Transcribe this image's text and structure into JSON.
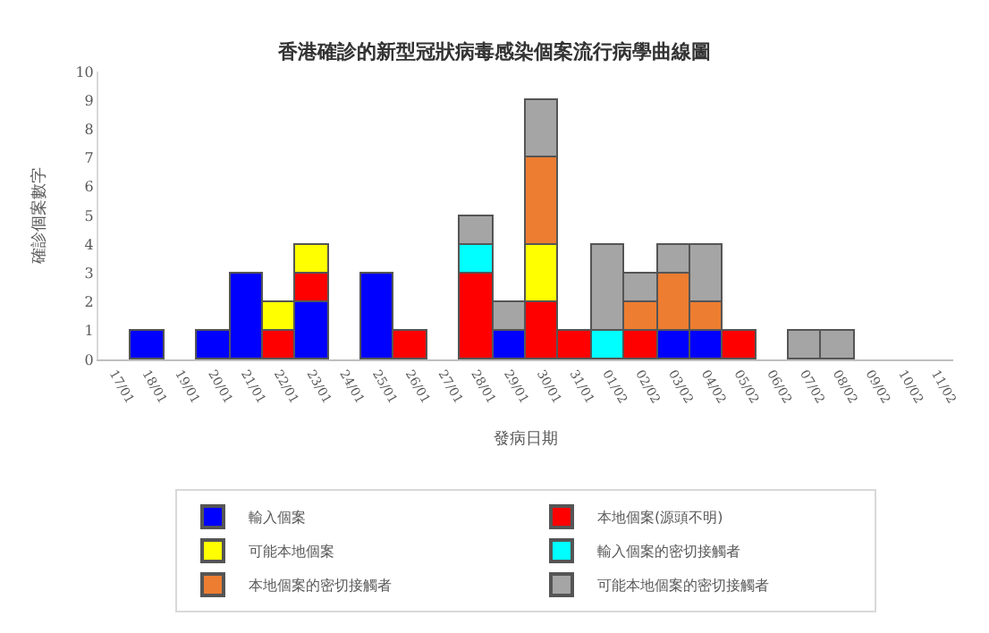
{
  "chart_data": {
    "type": "bar",
    "title": "香港確診的新型冠狀病毒感染個案流行病學曲線圖",
    "xlabel": "發病日期",
    "ylabel": "確診個案數字",
    "categories": [
      "17/01",
      "18/01",
      "19/01",
      "20/01",
      "21/01",
      "22/01",
      "23/01",
      "24/01",
      "25/01",
      "26/01",
      "27/01",
      "28/01",
      "29/01",
      "30/01",
      "31/01",
      "01/02",
      "02/02",
      "03/02",
      "04/02",
      "05/02",
      "06/02",
      "07/02",
      "08/02",
      "09/02",
      "10/02",
      "11/02"
    ],
    "stacked": true,
    "ylim": [
      0,
      10
    ],
    "yticks": [
      0,
      1,
      2,
      3,
      4,
      5,
      6,
      7,
      8,
      9,
      10
    ],
    "legend": "bottom",
    "series": [
      {
        "name": "輸入個案",
        "color": "#0000ff",
        "values": [
          null,
          1,
          null,
          1,
          3,
          null,
          2,
          null,
          3,
          null,
          null,
          null,
          1,
          null,
          null,
          null,
          null,
          1,
          1,
          null,
          null,
          null,
          null,
          null,
          null,
          null
        ]
      },
      {
        "name": "本地個案(源頭不明)",
        "color": "#ff0000",
        "values": [
          null,
          null,
          null,
          null,
          null,
          1,
          1,
          null,
          null,
          1,
          null,
          3,
          null,
          2,
          1,
          null,
          1,
          null,
          null,
          1,
          null,
          null,
          null,
          null,
          null,
          null
        ]
      },
      {
        "name": "可能本地個案",
        "color": "#ffff00",
        "values": [
          null,
          null,
          null,
          null,
          null,
          1,
          1,
          null,
          null,
          null,
          null,
          null,
          null,
          2,
          null,
          null,
          null,
          null,
          null,
          null,
          null,
          null,
          null,
          null,
          null,
          null
        ]
      },
      {
        "name": "輸入個案的密切接觸者",
        "color": "#00ffff",
        "values": [
          null,
          null,
          null,
          null,
          null,
          null,
          null,
          null,
          null,
          null,
          null,
          1,
          null,
          null,
          null,
          1,
          null,
          null,
          null,
          null,
          null,
          null,
          null,
          null,
          null,
          null
        ]
      },
      {
        "name": "本地個案的密切接觸者",
        "color": "#ed7d31",
        "values": [
          null,
          null,
          null,
          null,
          null,
          null,
          null,
          null,
          null,
          null,
          null,
          null,
          null,
          3,
          null,
          null,
          1,
          2,
          1,
          null,
          null,
          null,
          null,
          null,
          null,
          null
        ]
      },
      {
        "name": "可能本地個案的密切接觸者",
        "color": "#a5a5a5",
        "values": [
          null,
          null,
          null,
          null,
          null,
          null,
          null,
          null,
          null,
          null,
          null,
          1,
          1,
          2,
          null,
          3,
          1,
          1,
          2,
          null,
          null,
          1,
          1,
          null,
          null,
          null
        ]
      }
    ]
  }
}
